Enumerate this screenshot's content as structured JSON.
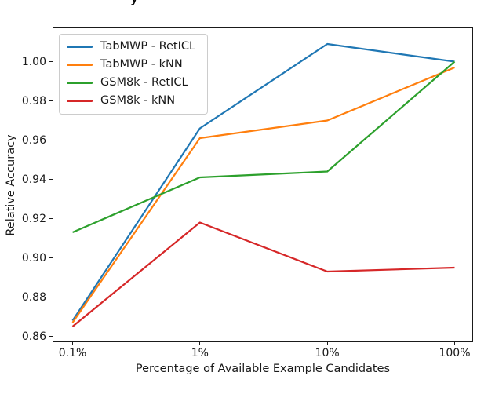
{
  "figure": {
    "title_fragment": "y"
  },
  "chart_data": {
    "type": "line",
    "title": "",
    "x_categories": [
      "0.1%",
      "1%",
      "10%",
      "100%"
    ],
    "x_scale": "log",
    "xlabel": "Percentage of Available Example Candidates",
    "ylabel": "Relative Accuracy",
    "yticks": [
      "0.86",
      "0.88",
      "0.90",
      "0.92",
      "0.94",
      "0.96",
      "0.98",
      "1.00"
    ],
    "ylim": [
      0.8566,
      1.017
    ],
    "grid": false,
    "legend_position": "upper-left",
    "series": [
      {
        "name": "TabMWP - RetICL",
        "color": "#1f77b4",
        "values": [
          0.868,
          0.966,
          1.009,
          1.0
        ]
      },
      {
        "name": "TabMWP - kNN",
        "color": "#ff7f0e",
        "values": [
          0.867,
          0.961,
          0.97,
          0.997
        ]
      },
      {
        "name": "GSM8k - RetICL",
        "color": "#2ca02c",
        "values": [
          0.913,
          0.941,
          0.944,
          1.0
        ]
      },
      {
        "name": "GSM8k - kNN",
        "color": "#d62728",
        "values": [
          0.865,
          0.918,
          0.893,
          0.895
        ]
      }
    ]
  }
}
